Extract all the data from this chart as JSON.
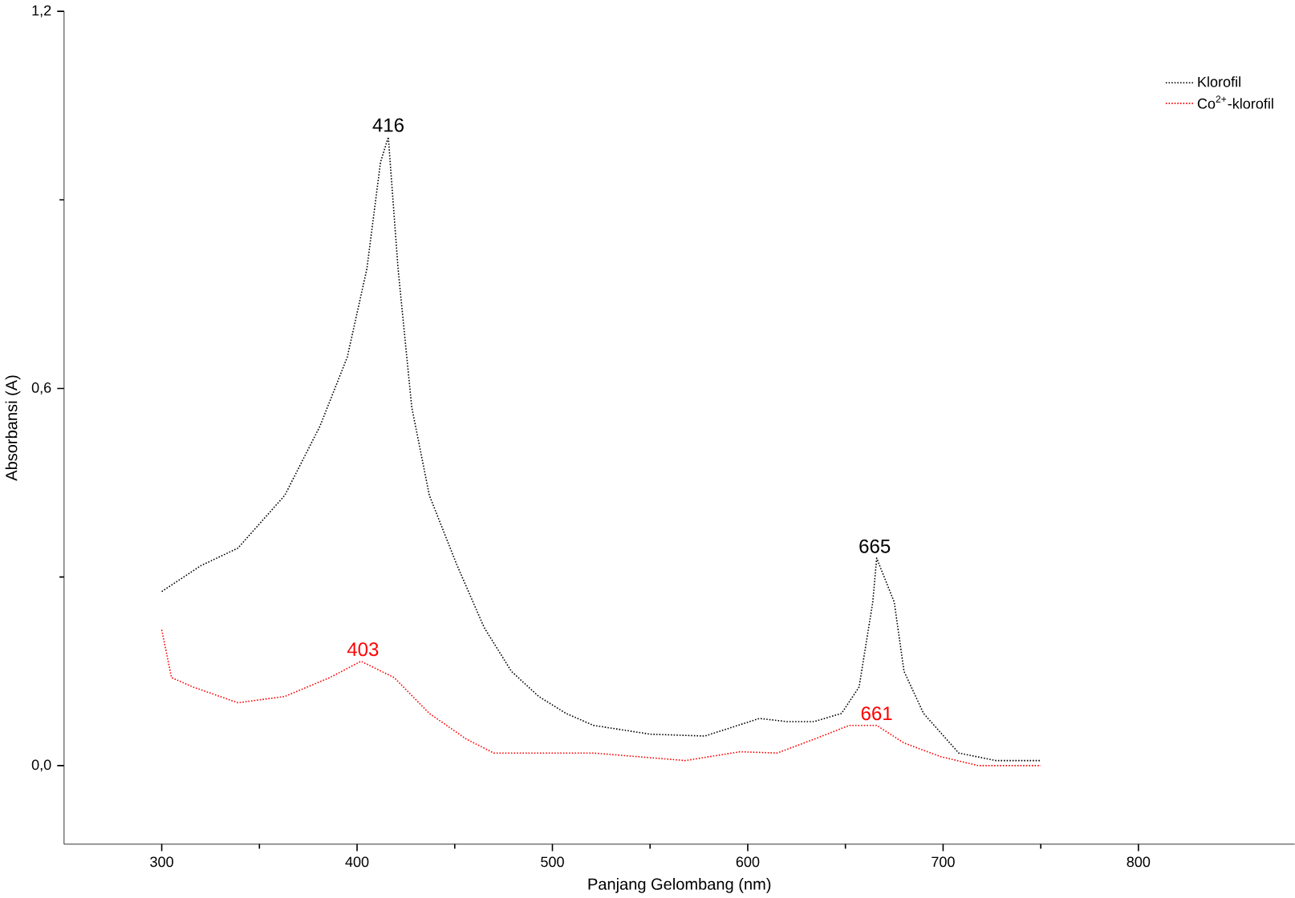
{
  "chart_data": {
    "type": "line",
    "xlabel": "Panjang Gelombang (nm)",
    "ylabel": "Absorbansi (A)",
    "xlim": [
      250,
      880
    ],
    "xticks": [
      300,
      400,
      500,
      600,
      700,
      800
    ],
    "ylim": [
      -0.125,
      1.2
    ],
    "yticks": [
      {
        "value": 0,
        "label": "0,0"
      },
      {
        "value": 0.6,
        "label": "0,6"
      },
      {
        "value": 1.2,
        "label": "1,2"
      }
    ],
    "grid": false,
    "legend": "top right",
    "line_style": "dotted",
    "marker": "none",
    "series": [
      {
        "name": "Klorofil",
        "color": "#000000",
        "x": [
          300,
          320,
          339,
          363,
          381,
          395,
          405,
          412,
          416,
          421,
          428,
          437,
          451,
          465,
          479,
          493,
          507,
          521,
          550,
          578,
          606,
          620,
          634,
          648,
          657,
          664,
          666,
          675,
          680,
          690,
          708,
          727,
          750
        ],
        "values": [
          0.277,
          0.318,
          0.346,
          0.43,
          0.54,
          0.65,
          0.79,
          0.96,
          1.0,
          0.79,
          0.57,
          0.43,
          0.32,
          0.22,
          0.15,
          0.11,
          0.083,
          0.064,
          0.05,
          0.047,
          0.075,
          0.07,
          0.07,
          0.083,
          0.125,
          0.26,
          0.33,
          0.26,
          0.15,
          0.083,
          0.02,
          0.008,
          0.008
        ]
      },
      {
        "name": "Co$^{2+}$-klorofil",
        "color": "#ff0000",
        "x": [
          300,
          305,
          316,
          339,
          363,
          386,
          402,
          419,
          437,
          456,
          470,
          521,
          568,
          596,
          615,
          634,
          652,
          666,
          680,
          699,
          718,
          750
        ],
        "values": [
          0.216,
          0.14,
          0.125,
          0.1,
          0.11,
          0.14,
          0.166,
          0.14,
          0.083,
          0.042,
          0.02,
          0.02,
          0.008,
          0.022,
          0.02,
          0.042,
          0.064,
          0.064,
          0.036,
          0.014,
          0.0,
          0.0
        ]
      }
    ],
    "annotations": [
      {
        "text": "416",
        "x": 416,
        "y": 1.0
      },
      {
        "text": "403",
        "x": 403,
        "y": 0.166
      },
      {
        "text": "665",
        "x": 665,
        "y": 0.33
      },
      {
        "text": "661",
        "x": 666,
        "y": 0.064
      }
    ]
  }
}
